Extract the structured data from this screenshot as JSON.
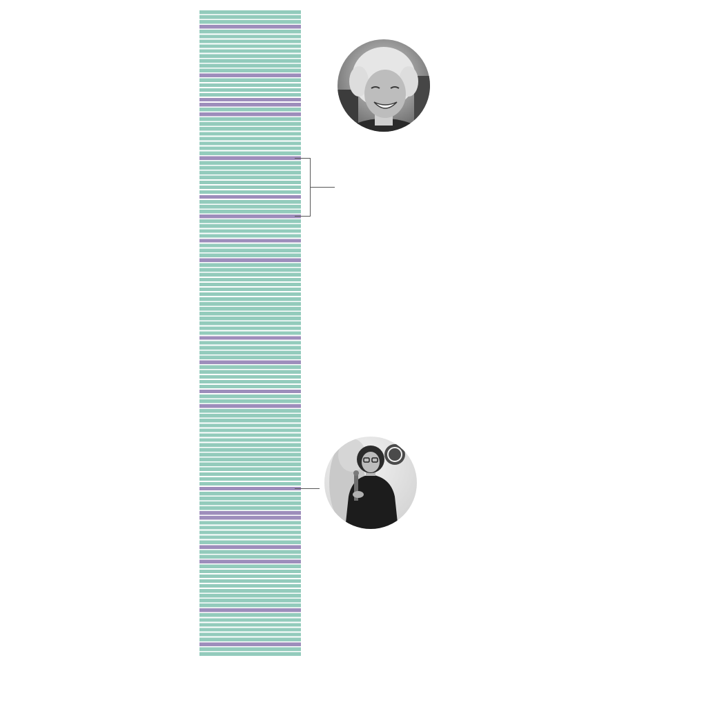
{
  "chart_data": {
    "type": "bar",
    "title": "",
    "xlabel": "",
    "ylabel": "",
    "orientation": "stacked-stripes",
    "colors": {
      "default": "#93cbbc",
      "highlight": "#9d8dbb"
    },
    "stripe_count": 133,
    "highlighted_indices": [
      3,
      13,
      18,
      19,
      21,
      30,
      38,
      42,
      47,
      51,
      67,
      72,
      78,
      81,
      98,
      103,
      104,
      110,
      113,
      123,
      130
    ],
    "annotations": [
      {
        "kind": "bracket",
        "from_index": 30,
        "to_index": 42
      },
      {
        "kind": "portrait-pointer",
        "index": 98,
        "portrait": "woman-with-glasses-holding-award-portrait"
      }
    ],
    "portraits": [
      {
        "subject": "smiling-woman-short-blonde-hair-portrait"
      },
      {
        "subject": "woman-with-glasses-holding-award-portrait"
      }
    ]
  }
}
